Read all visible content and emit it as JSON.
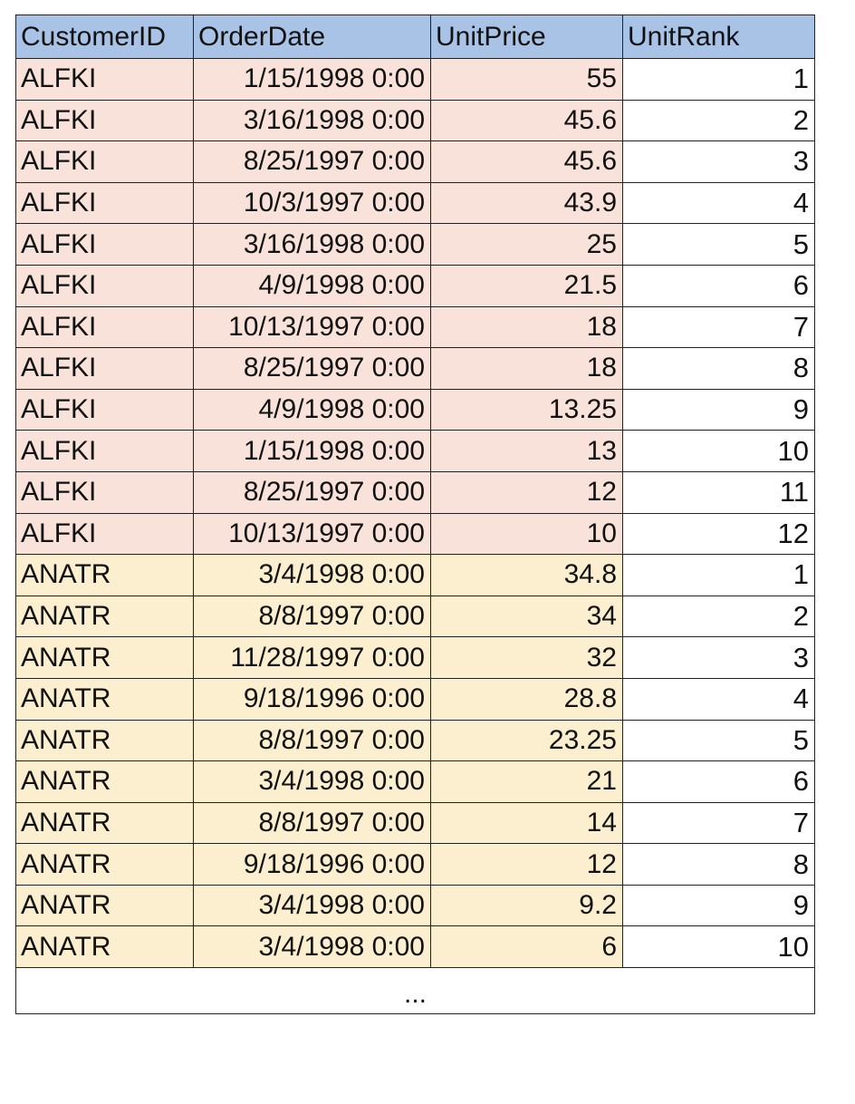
{
  "headers": [
    "CustomerID",
    "OrderDate",
    "UnitPrice",
    "UnitRank"
  ],
  "rows": [
    {
      "group": "g1",
      "cells": [
        "ALFKI",
        "1/15/1998 0:00",
        "55",
        "1"
      ]
    },
    {
      "group": "g1",
      "cells": [
        "ALFKI",
        "3/16/1998 0:00",
        "45.6",
        "2"
      ]
    },
    {
      "group": "g1",
      "cells": [
        "ALFKI",
        "8/25/1997 0:00",
        "45.6",
        "3"
      ]
    },
    {
      "group": "g1",
      "cells": [
        "ALFKI",
        "10/3/1997 0:00",
        "43.9",
        "4"
      ]
    },
    {
      "group": "g1",
      "cells": [
        "ALFKI",
        "3/16/1998 0:00",
        "25",
        "5"
      ]
    },
    {
      "group": "g1",
      "cells": [
        "ALFKI",
        "4/9/1998 0:00",
        "21.5",
        "6"
      ]
    },
    {
      "group": "g1",
      "cells": [
        "ALFKI",
        "10/13/1997 0:00",
        "18",
        "7"
      ]
    },
    {
      "group": "g1",
      "cells": [
        "ALFKI",
        "8/25/1997 0:00",
        "18",
        "8"
      ]
    },
    {
      "group": "g1",
      "cells": [
        "ALFKI",
        "4/9/1998 0:00",
        "13.25",
        "9"
      ]
    },
    {
      "group": "g1",
      "cells": [
        "ALFKI",
        "1/15/1998 0:00",
        "13",
        "10"
      ]
    },
    {
      "group": "g1",
      "cells": [
        "ALFKI",
        "8/25/1997 0:00",
        "12",
        "11"
      ]
    },
    {
      "group": "g1",
      "cells": [
        "ALFKI",
        "10/13/1997 0:00",
        "10",
        "12"
      ]
    },
    {
      "group": "g2",
      "cells": [
        "ANATR",
        "3/4/1998 0:00",
        "34.8",
        "1"
      ]
    },
    {
      "group": "g2",
      "cells": [
        "ANATR",
        "8/8/1997 0:00",
        "34",
        "2"
      ]
    },
    {
      "group": "g2",
      "cells": [
        "ANATR",
        "11/28/1997 0:00",
        "32",
        "3"
      ]
    },
    {
      "group": "g2",
      "cells": [
        "ANATR",
        "9/18/1996 0:00",
        "28.8",
        "4"
      ]
    },
    {
      "group": "g2",
      "cells": [
        "ANATR",
        "8/8/1997 0:00",
        "23.25",
        "5"
      ]
    },
    {
      "group": "g2",
      "cells": [
        "ANATR",
        "3/4/1998 0:00",
        "21",
        "6"
      ]
    },
    {
      "group": "g2",
      "cells": [
        "ANATR",
        "8/8/1997 0:00",
        "14",
        "7"
      ]
    },
    {
      "group": "g2",
      "cells": [
        "ANATR",
        "9/18/1996 0:00",
        "12",
        "8"
      ]
    },
    {
      "group": "g2",
      "cells": [
        "ANATR",
        "3/4/1998 0:00",
        "9.2",
        "9"
      ]
    },
    {
      "group": "g2",
      "cells": [
        "ANATR",
        "3/4/1998 0:00",
        "6",
        "10"
      ]
    }
  ],
  "footer_text": "...",
  "colors": {
    "header_bg": "#a9c3e6",
    "group1_bg": "#f8e2d9",
    "group2_bg": "#fcefcf",
    "rank_bg": "#ffffff",
    "border": "#222222"
  }
}
